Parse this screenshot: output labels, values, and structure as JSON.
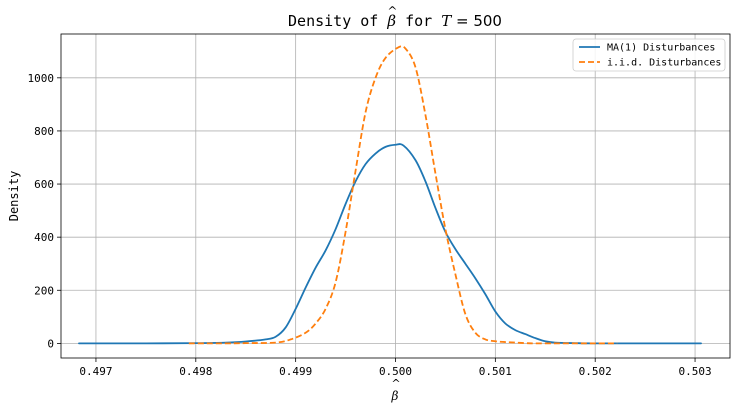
{
  "chart_data": {
    "type": "line",
    "title": {
      "prefix": "Density of ",
      "symbol": "β",
      "accent": "^",
      "middle": " for ",
      "var": "T",
      "equals": " = ",
      "value": "500"
    },
    "xlabel": {
      "symbol": "β",
      "accent": "^"
    },
    "ylabel": "Density",
    "xlim": [
      0.49665,
      0.50335
    ],
    "ylim": [
      -55,
      1165
    ],
    "xticks": [
      0.497,
      0.498,
      0.499,
      0.5,
      0.501,
      0.502,
      0.503
    ],
    "xtick_labels": [
      "0.497",
      "0.498",
      "0.499",
      "0.500",
      "0.501",
      "0.502",
      "0.503"
    ],
    "yticks": [
      0,
      200,
      400,
      600,
      800,
      1000
    ],
    "ytick_labels": [
      "0",
      "200",
      "400",
      "600",
      "800",
      "1000"
    ],
    "grid": true,
    "legend_position": "top-right",
    "series": [
      {
        "name": "MA(1) Disturbances",
        "color": "#1f77b4",
        "style": "solid",
        "points": [
          [
            0.49683,
            0
          ],
          [
            0.497,
            0
          ],
          [
            0.4975,
            0
          ],
          [
            0.498,
            1
          ],
          [
            0.4983,
            3
          ],
          [
            0.4985,
            7
          ],
          [
            0.4987,
            15
          ],
          [
            0.4988,
            25
          ],
          [
            0.4989,
            60
          ],
          [
            0.499,
            130
          ],
          [
            0.4991,
            210
          ],
          [
            0.4992,
            285
          ],
          [
            0.4993,
            350
          ],
          [
            0.4994,
            430
          ],
          [
            0.4995,
            525
          ],
          [
            0.4996,
            610
          ],
          [
            0.4997,
            675
          ],
          [
            0.4998,
            715
          ],
          [
            0.4999,
            740
          ],
          [
            0.5,
            748
          ],
          [
            0.50008,
            745
          ],
          [
            0.5002,
            690
          ],
          [
            0.5003,
            610
          ],
          [
            0.5004,
            510
          ],
          [
            0.5005,
            420
          ],
          [
            0.5006,
            355
          ],
          [
            0.5007,
            300
          ],
          [
            0.5008,
            245
          ],
          [
            0.5009,
            185
          ],
          [
            0.501,
            120
          ],
          [
            0.5011,
            75
          ],
          [
            0.5012,
            50
          ],
          [
            0.5013,
            35
          ],
          [
            0.5014,
            20
          ],
          [
            0.5015,
            8
          ],
          [
            0.5016,
            3
          ],
          [
            0.5018,
            1
          ],
          [
            0.502,
            0
          ],
          [
            0.5025,
            0
          ],
          [
            0.50306,
            0
          ]
        ]
      },
      {
        "name": "i.i.d. Disturbances",
        "color": "#ff7f0e",
        "style": "dashed",
        "points": [
          [
            0.49793,
            0
          ],
          [
            0.4981,
            0
          ],
          [
            0.4983,
            0
          ],
          [
            0.4985,
            1
          ],
          [
            0.4988,
            3
          ],
          [
            0.49895,
            15
          ],
          [
            0.4991,
            40
          ],
          [
            0.4992,
            75
          ],
          [
            0.4993,
            130
          ],
          [
            0.4994,
            230
          ],
          [
            0.4995,
            420
          ],
          [
            0.4996,
            650
          ],
          [
            0.4997,
            870
          ],
          [
            0.4998,
            1000
          ],
          [
            0.4999,
            1075
          ],
          [
            0.50003,
            1115
          ],
          [
            0.5001,
            1110
          ],
          [
            0.5002,
            1040
          ],
          [
            0.5003,
            860
          ],
          [
            0.5004,
            640
          ],
          [
            0.5005,
            430
          ],
          [
            0.5006,
            260
          ],
          [
            0.5007,
            110
          ],
          [
            0.5008,
            40
          ],
          [
            0.5009,
            15
          ],
          [
            0.501,
            8
          ],
          [
            0.5011,
            5
          ],
          [
            0.5012,
            3
          ],
          [
            0.5013,
            1
          ],
          [
            0.5014,
            0
          ],
          [
            0.5016,
            0
          ],
          [
            0.5018,
            0
          ],
          [
            0.502,
            0
          ],
          [
            0.50222,
            0
          ]
        ]
      }
    ]
  }
}
